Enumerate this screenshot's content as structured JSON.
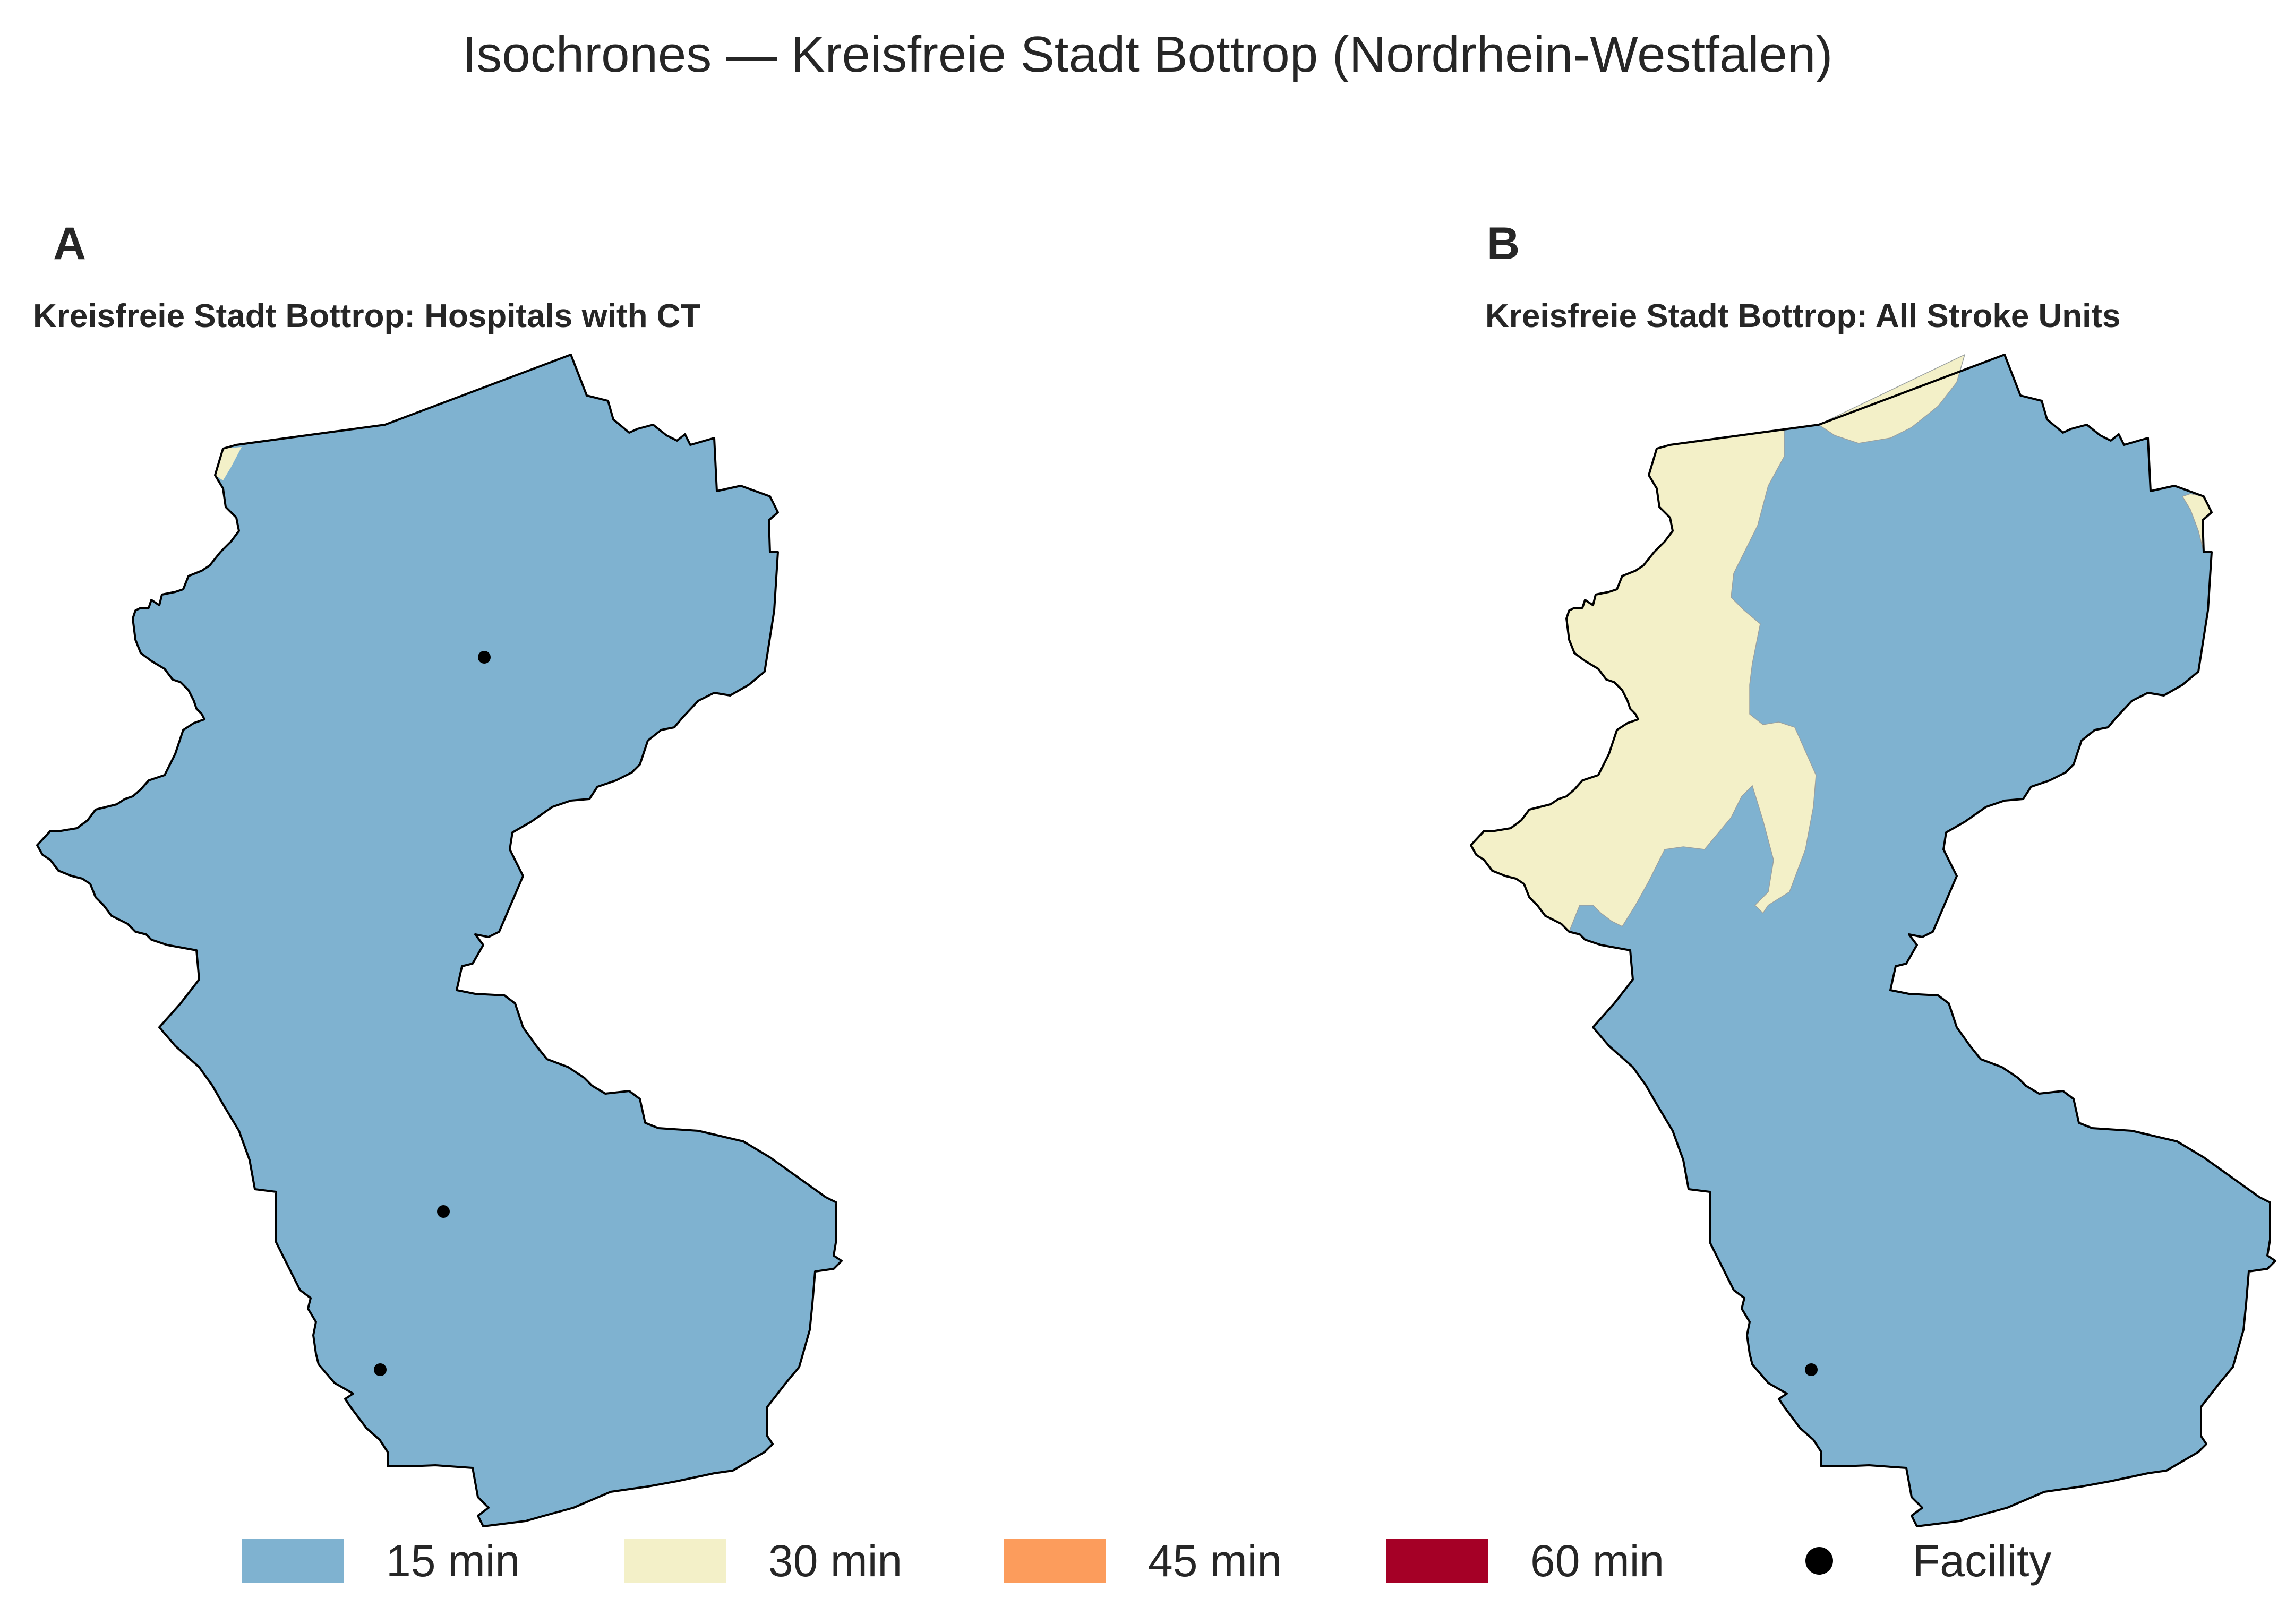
{
  "title": "Isochrones — Kreisfreie Stadt Bottrop (Nordrhein-Westfalen)",
  "panels": [
    {
      "letter": "A",
      "title": "Kreisfreie Stadt Bottrop: Hospitals with CT",
      "facility_count": 3
    },
    {
      "letter": "B",
      "title": "Kreisfreie Stadt Bottrop: All Stroke Units",
      "facility_count": 1
    }
  ],
  "legend": [
    {
      "label": "15 min",
      "color": "#7fb2d0"
    },
    {
      "label": "30 min",
      "color": "#f3f0c8"
    },
    {
      "label": "45 min",
      "color": "#fc9c5c"
    },
    {
      "label": "60 min",
      "color": "#a50026"
    },
    {
      "label": "Facility",
      "color": "#000000",
      "marker": "dot"
    }
  ],
  "colors": {
    "fifteen": "#7fb2d0",
    "thirty": "#f3f0c8",
    "outline": "#000000",
    "facility": "#000000"
  }
}
